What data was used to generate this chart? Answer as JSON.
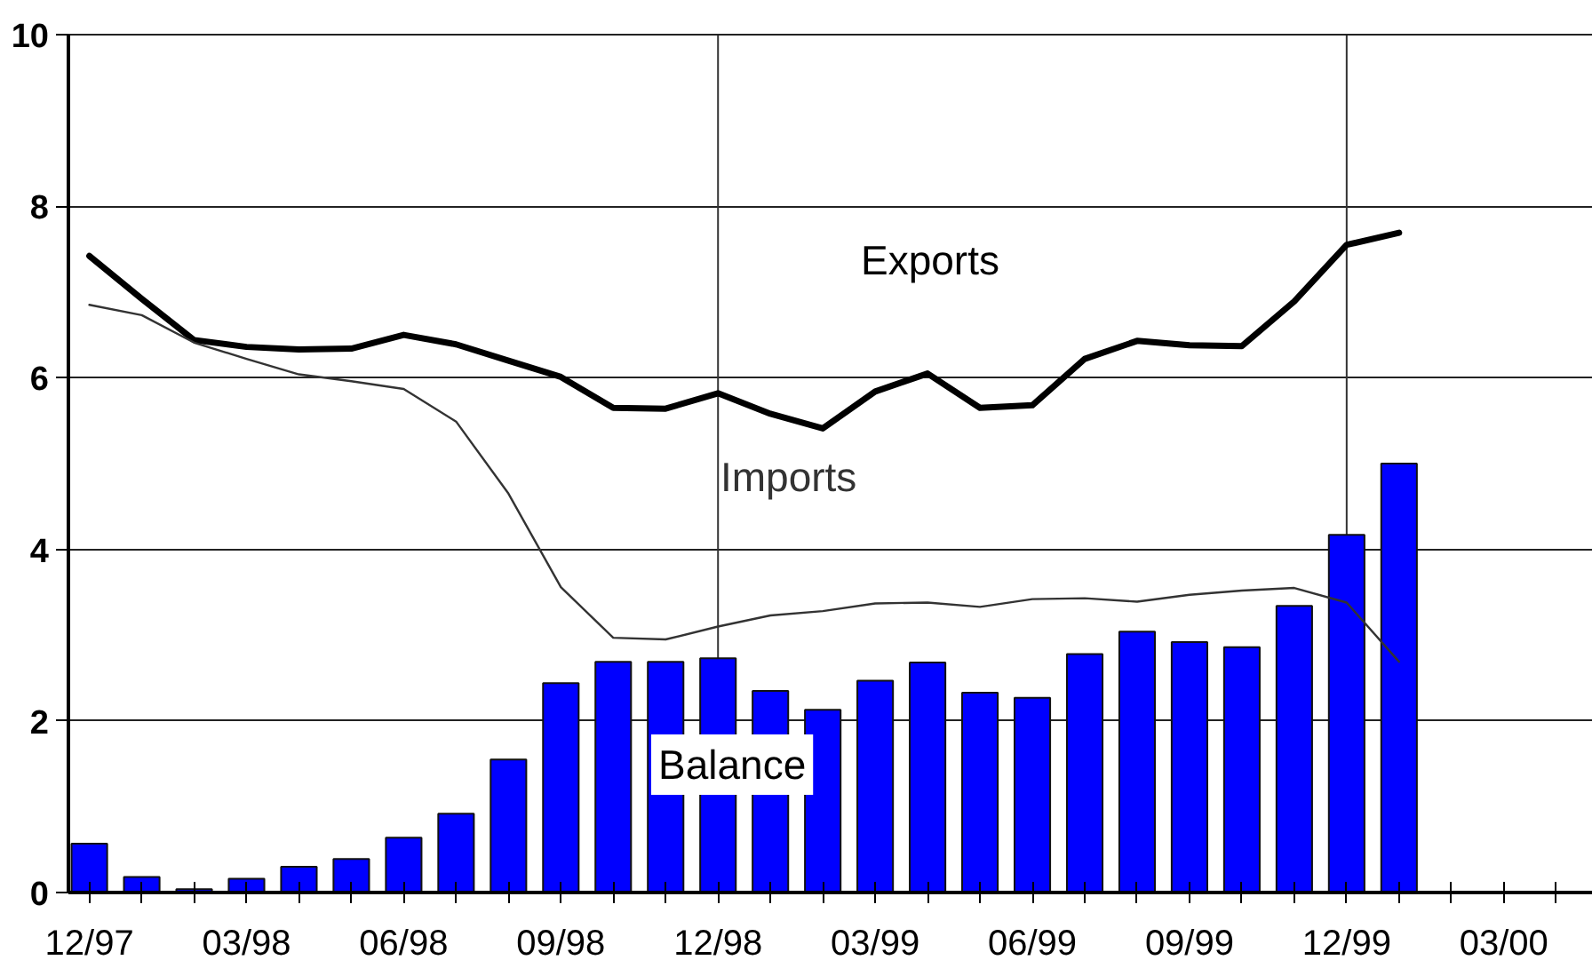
{
  "chart_data": {
    "type": "bar",
    "categories": [
      "12/97",
      null,
      null,
      "03/98",
      null,
      null,
      "06/98",
      null,
      null,
      "09/98",
      null,
      null,
      "12/98",
      null,
      null,
      "03/99",
      null,
      null,
      "06/99",
      null,
      null,
      "09/99",
      null,
      null,
      "12/99",
      null,
      null,
      "03/00",
      null
    ],
    "series": [
      {
        "name": "Balance",
        "color": "#0000ff",
        "values": [
          0.57,
          0.18,
          0.04,
          0.16,
          0.3,
          0.39,
          0.64,
          0.92,
          1.55,
          2.44,
          2.69,
          2.69,
          2.73,
          2.35,
          2.13,
          2.47,
          2.68,
          2.33,
          2.27,
          2.78,
          3.04,
          2.92,
          2.86,
          3.34,
          4.17,
          5.0,
          null,
          null,
          null
        ]
      },
      {
        "name": "Exports",
        "type": "line",
        "color": "#000000",
        "values": [
          7.42,
          6.92,
          6.44,
          6.36,
          6.33,
          6.34,
          6.5,
          6.39,
          6.2,
          6.01,
          5.65,
          5.64,
          5.82,
          5.58,
          5.41,
          5.84,
          6.05,
          5.65,
          5.68,
          6.22,
          6.43,
          6.38,
          6.37,
          6.89,
          7.55,
          7.69,
          null,
          null,
          null
        ]
      },
      {
        "name": "Imports",
        "type": "line",
        "color": "#333333",
        "values": [
          6.85,
          6.73,
          6.41,
          6.22,
          6.04,
          5.96,
          5.87,
          5.49,
          4.65,
          3.56,
          2.97,
          2.95,
          3.1,
          3.23,
          3.28,
          3.37,
          3.38,
          3.33,
          3.42,
          3.43,
          3.39,
          3.47,
          3.52,
          3.55,
          3.38,
          2.69,
          null,
          null,
          null
        ]
      }
    ],
    "ylim": [
      0,
      10
    ],
    "yticks": [
      0,
      2,
      4,
      6,
      8,
      10
    ],
    "grid": "y",
    "ref_lines": [
      {
        "axis": "x",
        "value": "12/98",
        "color": "#333333"
      },
      {
        "axis": "x",
        "value": "12/99",
        "color": "#333333"
      }
    ]
  }
}
